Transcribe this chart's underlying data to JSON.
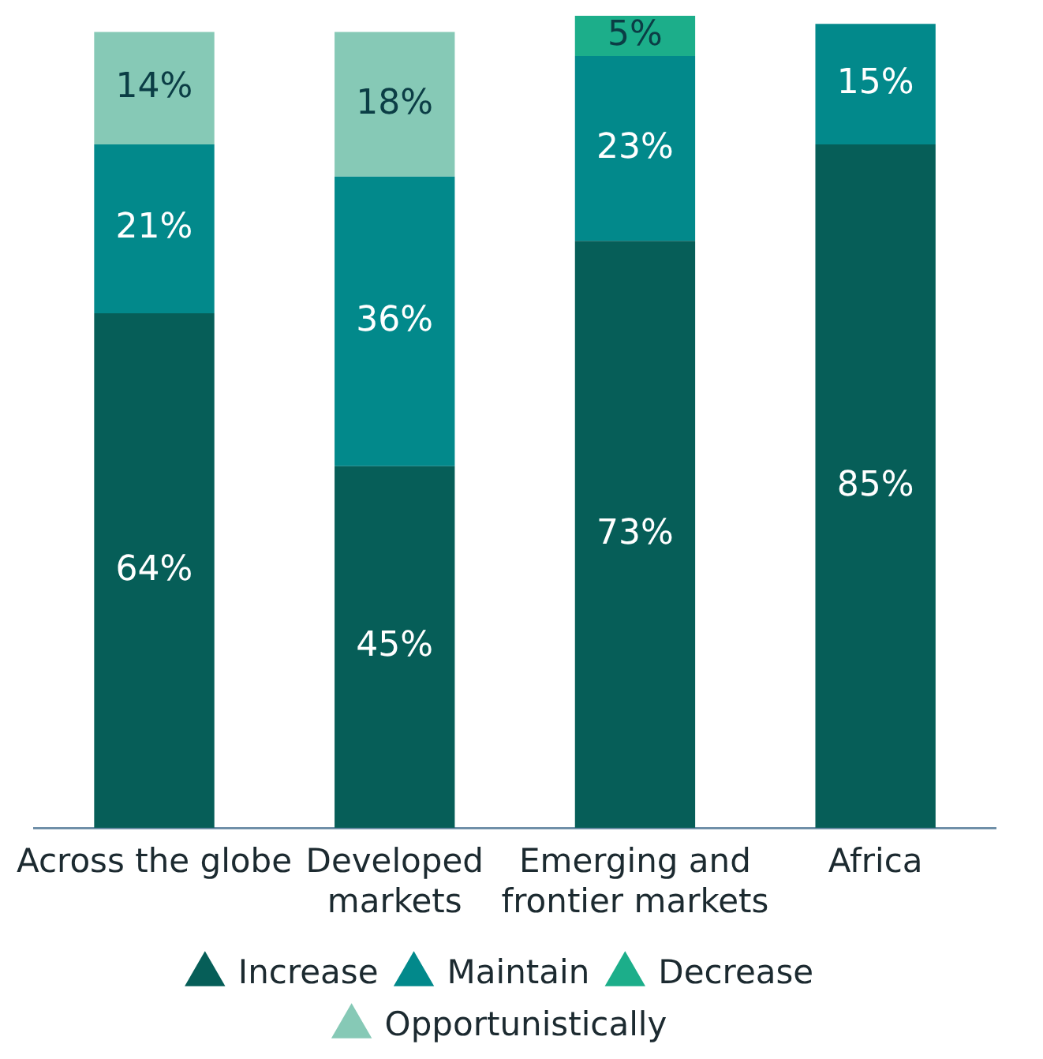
{
  "chart_data": {
    "type": "bar",
    "stacked": true,
    "categories": [
      "Across the globe",
      "Developed markets",
      "Emerging and frontier markets",
      "Africa"
    ],
    "ylim": [
      0,
      101
    ],
    "tick_labels": "x",
    "grid": false,
    "legend": "bottom",
    "marker": "triangle",
    "series": [
      {
        "name": "Increase",
        "color": "#065e58",
        "values": [
          64,
          45,
          73,
          85
        ],
        "value_labels": [
          "64%",
          "45%",
          "73%",
          "85%"
        ]
      },
      {
        "name": "Maintain",
        "color": "#02898b",
        "values": [
          21,
          36,
          23,
          15
        ],
        "value_labels": [
          "21%",
          "36%",
          "23%",
          "15%"
        ]
      },
      {
        "name": "Decrease",
        "color": "#1cae8a",
        "values": [
          null,
          null,
          5,
          null
        ],
        "value_labels": [
          null,
          null,
          "5%",
          null
        ]
      },
      {
        "name": "Opportunistically",
        "color": "#86c9b6",
        "values": [
          14,
          18,
          null,
          null
        ],
        "value_labels": [
          "14%",
          "18%",
          null,
          null
        ]
      }
    ]
  }
}
